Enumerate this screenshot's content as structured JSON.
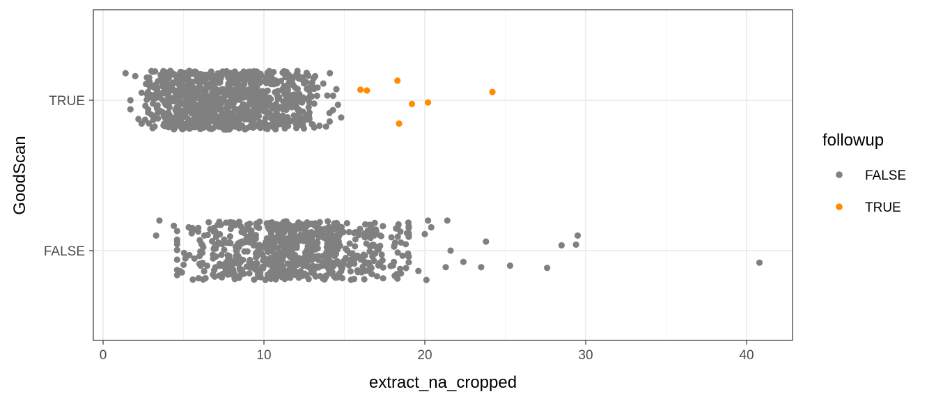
{
  "chart_data": {
    "type": "scatter",
    "subtype": "jittered strip plot",
    "title": "",
    "xlabel": "extract_na_cropped",
    "ylabel": "GoodScan",
    "xlim": [
      -0.6,
      42.8
    ],
    "x_ticks": [
      0,
      10,
      20,
      30,
      40
    ],
    "x_tick_labels": [
      "0",
      "10",
      "20",
      "30",
      "40"
    ],
    "y_categories": [
      "FALSE",
      "TRUE"
    ],
    "grid": true,
    "theme": "bw",
    "legend": {
      "title": "followup",
      "position": "right",
      "entries": [
        {
          "label": "FALSE",
          "color": "#808080"
        },
        {
          "label": "TRUE",
          "color": "#ff8c00"
        }
      ]
    },
    "colors": {
      "FALSE": "#808080",
      "TRUE": "#ff8c00"
    },
    "series": [
      {
        "name": "FALSE",
        "color": "#808080",
        "note": "dense jittered clouds (~1000 points at GoodScan=TRUE over x 1.4-14.8, ~600 points at GoodScan=FALSE over x 3.3-22); listed points are distinct outliers",
        "points": [
          {
            "x": 1.4,
            "y": "TRUE",
            "jitter": 0.36
          },
          {
            "x": 2.0,
            "y": "TRUE",
            "jitter": 0.32
          },
          {
            "x": 2.4,
            "y": "TRUE",
            "jitter": 0.1
          },
          {
            "x": 1.7,
            "y": "TRUE",
            "jitter": 0.0
          },
          {
            "x": 1.7,
            "y": "TRUE",
            "jitter": -0.12
          },
          {
            "x": 2.2,
            "y": "TRUE",
            "jitter": -0.25
          },
          {
            "x": 2.4,
            "y": "TRUE",
            "jitter": -0.31
          },
          {
            "x": 14.8,
            "y": "TRUE",
            "jitter": -0.23
          },
          {
            "x": 14.6,
            "y": "TRUE",
            "jitter": -0.06
          },
          {
            "x": 14.3,
            "y": "TRUE",
            "jitter": 0.06
          },
          {
            "x": 14.1,
            "y": "TRUE",
            "jitter": 0.36
          },
          {
            "x": 3.5,
            "y": "FALSE",
            "jitter": 0.4
          },
          {
            "x": 4.4,
            "y": "FALSE",
            "jitter": 0.33
          },
          {
            "x": 3.3,
            "y": "FALSE",
            "jitter": 0.2
          },
          {
            "x": 4.6,
            "y": "FALSE",
            "jitter": -0.12
          },
          {
            "x": 4.9,
            "y": "FALSE",
            "jitter": -0.29
          },
          {
            "x": 20.2,
            "y": "FALSE",
            "jitter": 0.4
          },
          {
            "x": 21.4,
            "y": "FALSE",
            "jitter": 0.4
          },
          {
            "x": 20.4,
            "y": "FALSE",
            "jitter": 0.31
          },
          {
            "x": 20.0,
            "y": "FALSE",
            "jitter": 0.22
          },
          {
            "x": 21.6,
            "y": "FALSE",
            "jitter": 0.0
          },
          {
            "x": 22.4,
            "y": "FALSE",
            "jitter": -0.15
          },
          {
            "x": 21.3,
            "y": "FALSE",
            "jitter": -0.22
          },
          {
            "x": 20.1,
            "y": "FALSE",
            "jitter": -0.39
          },
          {
            "x": 19.6,
            "y": "FALSE",
            "jitter": -0.27
          },
          {
            "x": 23.5,
            "y": "FALSE",
            "jitter": -0.22
          },
          {
            "x": 23.8,
            "y": "FALSE",
            "jitter": 0.12
          },
          {
            "x": 25.3,
            "y": "FALSE",
            "jitter": -0.2
          },
          {
            "x": 27.6,
            "y": "FALSE",
            "jitter": -0.23
          },
          {
            "x": 28.5,
            "y": "FALSE",
            "jitter": 0.07
          },
          {
            "x": 29.4,
            "y": "FALSE",
            "jitter": 0.08
          },
          {
            "x": 29.5,
            "y": "FALSE",
            "jitter": 0.2
          },
          {
            "x": 40.8,
            "y": "FALSE",
            "jitter": -0.16
          }
        ]
      },
      {
        "name": "TRUE",
        "color": "#ff8c00",
        "points": [
          {
            "x": 18.3,
            "y": "TRUE",
            "jitter": 0.26
          },
          {
            "x": 16.0,
            "y": "TRUE",
            "jitter": 0.14
          },
          {
            "x": 16.4,
            "y": "TRUE",
            "jitter": 0.13
          },
          {
            "x": 24.2,
            "y": "TRUE",
            "jitter": 0.11
          },
          {
            "x": 20.2,
            "y": "TRUE",
            "jitter": -0.03
          },
          {
            "x": 19.2,
            "y": "TRUE",
            "jitter": -0.05
          },
          {
            "x": 18.4,
            "y": "TRUE",
            "jitter": -0.31
          }
        ]
      }
    ]
  }
}
